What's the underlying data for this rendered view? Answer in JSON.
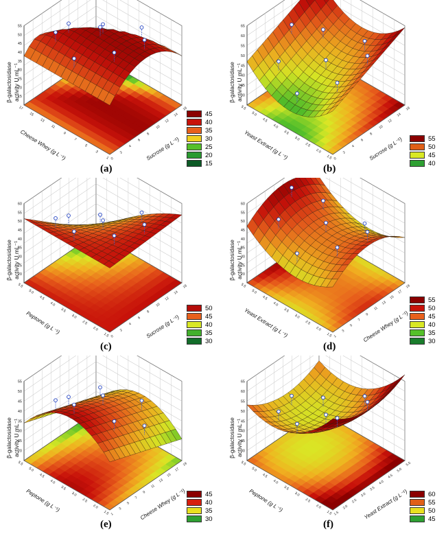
{
  "chart_data": [
    {
      "type": "surface",
      "label": "(a)",
      "zlabel": "β-galactosidase activity U mL⁻¹",
      "xlabel": "Cheese Whey (g L⁻¹)",
      "ylabel": "Sucrose (g L⁻¹)",
      "z_ticks": [
        "55",
        "50",
        "45",
        "40",
        "35",
        "30",
        "25",
        "20",
        "15"
      ],
      "x_ticks": [
        "17",
        "15",
        "13",
        "11",
        "9",
        "7",
        "5",
        "3",
        "1"
      ],
      "y_ticks": [
        "16",
        "14",
        "12",
        "10",
        "8",
        "6",
        "4",
        "2",
        "0"
      ],
      "legend": {
        "labels": [
          "45",
          "40",
          "35",
          "30",
          "25",
          "20",
          "15"
        ],
        "colors": [
          "#8b0000",
          "#c8120a",
          "#e8601c",
          "#f0d020",
          "#55c02a",
          "#2a9a30",
          "#0c5a26"
        ]
      },
      "shape": "ridge-y-drop-corner"
    },
    {
      "type": "surface",
      "label": "(b)",
      "zlabel": "β-galactosidase activity U mL⁻¹",
      "xlabel": "Yeast Extract (g L⁻¹)",
      "ylabel": "Sucrose (g L⁻¹)",
      "z_ticks": [
        "65",
        "60",
        "55",
        "50",
        "45",
        "40",
        "35",
        "30"
      ],
      "x_ticks": [
        "5.5",
        "5.0",
        "4.5",
        "4.0",
        "3.5",
        "3.0",
        "2.5",
        "2.0",
        "1.5"
      ],
      "y_ticks": [
        "16",
        "14",
        "12",
        "10",
        "8",
        "6",
        "4",
        "2",
        "0"
      ],
      "legend": {
        "labels": [
          "55",
          "50",
          "45",
          "40"
        ],
        "colors": [
          "#8b0000",
          "#e06018",
          "#d9e825",
          "#2ea032"
        ]
      },
      "shape": "valley-rising-right"
    },
    {
      "type": "surface",
      "label": "(c)",
      "zlabel": "β-galactosidase activity U mL⁻¹",
      "xlabel": "Peptone (g L⁻¹)",
      "ylabel": "Sucrose (g L⁻¹)",
      "z_ticks": [
        "60",
        "55",
        "50",
        "45",
        "40",
        "35",
        "30",
        "25",
        "20"
      ],
      "x_ticks": [
        "5.5",
        "5.0",
        "4.5",
        "4.0",
        "3.5",
        "3.0",
        "2.5",
        "2.0",
        "1.5"
      ],
      "y_ticks": [
        "16",
        "14",
        "12",
        "10",
        "8",
        "6",
        "4",
        "2",
        "0"
      ],
      "legend": {
        "labels": [
          "50",
          "45",
          "40",
          "35",
          "30"
        ],
        "colors": [
          "#b50d0a",
          "#e8601c",
          "#d9e825",
          "#42b02c",
          "#136d2a"
        ]
      },
      "shape": "plane-drop-corner"
    },
    {
      "type": "surface",
      "label": "(d)",
      "zlabel": "β-galactosidase activity U mL⁻¹",
      "xlabel": "Yeast Extract (g L⁻¹)",
      "ylabel": "Cheese Whey (g L⁻¹)",
      "z_ticks": [
        "60",
        "55",
        "50",
        "45",
        "40",
        "35",
        "30",
        "25",
        "20"
      ],
      "x_ticks": [
        "5.5",
        "5.0",
        "4.5",
        "4.0",
        "3.5",
        "3.0",
        "2.5",
        "2.0",
        "1.5"
      ],
      "y_ticks": [
        "19",
        "17",
        "15",
        "13",
        "11",
        "9",
        "7",
        "5",
        "3",
        "1"
      ],
      "legend": {
        "labels": [
          "55",
          "50",
          "45",
          "40",
          "35",
          "30"
        ],
        "colors": [
          "#8b0000",
          "#c8120a",
          "#e8601c",
          "#d9e825",
          "#55c02a",
          "#1a7d2c"
        ]
      },
      "shape": "saddle"
    },
    {
      "type": "surface",
      "label": "(e)",
      "zlabel": "β-galactosidase activity U mL⁻¹",
      "xlabel": "Peptone (g L⁻¹)",
      "ylabel": "Cheese Whey (g L⁻¹)",
      "z_ticks": [
        "55",
        "50",
        "45",
        "40",
        "35",
        "30",
        "25",
        "20"
      ],
      "x_ticks": [
        "5.5",
        "5.0",
        "4.5",
        "4.0",
        "3.5",
        "3.0",
        "2.5",
        "2.0",
        "1.5"
      ],
      "y_ticks": [
        "19",
        "17",
        "15",
        "13",
        "11",
        "9",
        "7",
        "5",
        "3",
        "1"
      ],
      "legend": {
        "labels": [
          "45",
          "40",
          "35",
          "30"
        ],
        "colors": [
          "#8b0000",
          "#d81e0e",
          "#e8e020",
          "#2ea032"
        ]
      },
      "shape": "ridge-x"
    },
    {
      "type": "surface",
      "label": "(f)",
      "zlabel": "β-galactosidase activity U mL⁻¹",
      "xlabel": "Peptone (g L⁻¹)",
      "ylabel": "Yeast Extract (g L⁻¹)",
      "z_ticks": [
        "65",
        "60",
        "55",
        "50",
        "45",
        "40",
        "35",
        "30"
      ],
      "x_ticks": [
        "5.5",
        "5.0",
        "4.5",
        "4.0",
        "3.5",
        "3.0",
        "2.5",
        "2.0",
        "1.5"
      ],
      "y_ticks": [
        "5.5",
        "5.0",
        "4.5",
        "4.0",
        "3.5",
        "3.0",
        "2.5",
        "2.0",
        "1.5"
      ],
      "legend": {
        "labels": [
          "60",
          "55",
          "50",
          "45"
        ],
        "colors": [
          "#8b0000",
          "#e06018",
          "#e8e020",
          "#2ea032"
        ]
      },
      "shape": "bowl"
    }
  ]
}
